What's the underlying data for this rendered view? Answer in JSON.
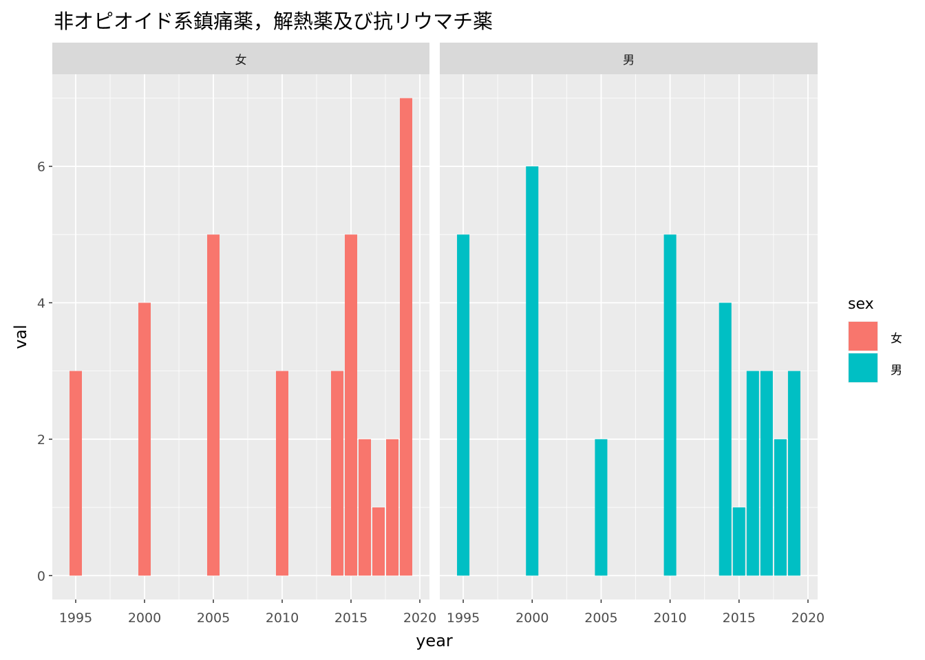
{
  "chart_data": {
    "type": "bar",
    "title": "非オピオイド系鎮痛薬，解熱薬及び抗リウマチ薬",
    "xlabel": "year",
    "ylabel": "val",
    "xlim": [
      1993.3,
      2020.7
    ],
    "ylim": [
      -0.35,
      7.35
    ],
    "x_ticks": [
      1995,
      2000,
      2005,
      2010,
      2015,
      2020
    ],
    "y_ticks": [
      0,
      2,
      4,
      6
    ],
    "grid": true,
    "legend": {
      "title": "sex",
      "placement": "right",
      "entries": [
        {
          "label": "女",
          "color": "#F8766D"
        },
        {
          "label": "男",
          "color": "#00BFC4"
        }
      ]
    },
    "facets": [
      {
        "label": "女",
        "color": "#F8766D",
        "x": [
          1995,
          2000,
          2005,
          2010,
          2014,
          2015,
          2016,
          2017,
          2018,
          2019
        ],
        "values": [
          3,
          4,
          5,
          3,
          3,
          5,
          2,
          1,
          2,
          7
        ]
      },
      {
        "label": "男",
        "color": "#00BFC4",
        "x": [
          1995,
          2000,
          2005,
          2010,
          2014,
          2015,
          2016,
          2017,
          2018,
          2019
        ],
        "values": [
          5,
          6,
          2,
          5,
          4,
          1,
          3,
          3,
          2,
          3
        ]
      }
    ]
  }
}
